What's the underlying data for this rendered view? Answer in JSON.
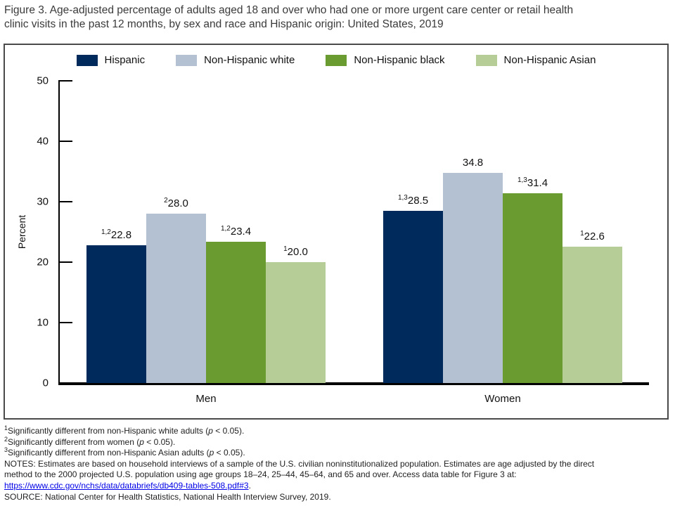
{
  "figure_title": {
    "line1": "Figure 3. Age-adjusted percentage of adults aged 18 and over who had one or more urgent care center or retail health",
    "line2": "clinic visits in the past 12 months, by sex and race and Hispanic origin: United States, 2019"
  },
  "chart_data": {
    "type": "bar",
    "title": "Figure 3. Age-adjusted percentage of adults aged 18 and over who had one or more urgent care center or retail health clinic visits in the past 12 months, by sex and race and Hispanic origin: United States, 2019",
    "categories": [
      "Men",
      "Women"
    ],
    "series": [
      {
        "name": "Hispanic",
        "color": "#002a5c",
        "values": [
          22.8,
          28.5
        ],
        "labels": [
          {
            "sup": "1,2",
            "value": "22.8"
          },
          {
            "sup": "1,3",
            "value": "28.5"
          }
        ]
      },
      {
        "name": "Non-Hispanic white",
        "color": "#b3c1d3",
        "values": [
          28.0,
          34.8
        ],
        "labels": [
          {
            "sup": "2",
            "value": "28.0"
          },
          {
            "sup": "",
            "value": "34.8"
          }
        ]
      },
      {
        "name": "Non-Hispanic black",
        "color": "#6a9b31",
        "values": [
          23.4,
          31.4
        ],
        "labels": [
          {
            "sup": "1,2",
            "value": "23.4"
          },
          {
            "sup": "1,3",
            "value": "31.4"
          }
        ]
      },
      {
        "name": "Non-Hispanic Asian",
        "color": "#b6cd97",
        "values": [
          20.0,
          22.6
        ],
        "labels": [
          {
            "sup": "1",
            "value": "20.0"
          },
          {
            "sup": "1",
            "value": "22.6"
          }
        ]
      }
    ],
    "xlabel": "",
    "ylabel": "Percent",
    "ylim": [
      0,
      50
    ],
    "yticks": [
      0,
      10,
      20,
      30,
      40,
      50
    ],
    "grid": false,
    "legend_position": "top-center"
  },
  "footnotes": [
    {
      "sup": "1",
      "body": "Significantly different from non-Hispanic white adults (",
      "p": "p",
      "tail": " < 0.05)."
    },
    {
      "sup": "2",
      "body": "Significantly different from women (",
      "p": "p",
      "tail": " < 0.05)."
    },
    {
      "sup": "3",
      "body": "Significantly different from non-Hispanic Asian adults (",
      "p": "p",
      "tail": " < 0.05)."
    }
  ],
  "notes": {
    "line1": "NOTES: Estimates are based on household interviews of a sample of the U.S. civilian noninstitutionalized population. Estimates are age adjusted by the direct",
    "line2": "method to the 2000 projected U.S. population using age groups 18–24, 25–44, 45–64, and 65 and over. Access data table for Figure 3 at:",
    "link_text": "https://www.cdc.gov/nchs/data/databriefs/db409-tables-508.pdf#3",
    "link_suffix": "."
  },
  "source": "SOURCE: National Center for Health Statistics, National Health Interview Survey, 2019."
}
